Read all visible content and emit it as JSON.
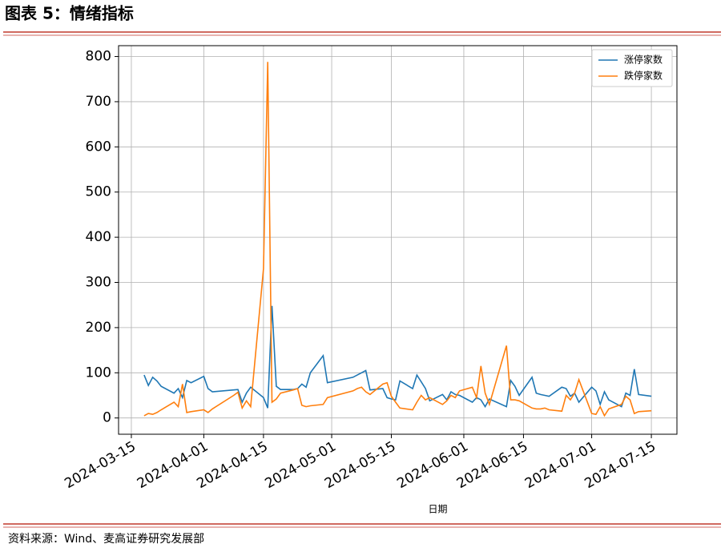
{
  "header": {
    "title": "图表 5：情绪指标"
  },
  "chart_data": {
    "type": "line",
    "xlabel": "日期",
    "x": [
      "2024-03-18",
      "2024-03-19",
      "2024-03-20",
      "2024-03-21",
      "2024-03-22",
      "2024-03-25",
      "2024-03-26",
      "2024-03-27",
      "2024-03-28",
      "2024-03-29",
      "2024-04-01",
      "2024-04-02",
      "2024-04-03",
      "2024-04-08",
      "2024-04-09",
      "2024-04-10",
      "2024-04-11",
      "2024-04-12",
      "2024-04-15",
      "2024-04-16",
      "2024-04-17",
      "2024-04-18",
      "2024-04-19",
      "2024-04-22",
      "2024-04-23",
      "2024-04-24",
      "2024-04-25",
      "2024-04-26",
      "2024-04-29",
      "2024-04-30",
      "2024-05-06",
      "2024-05-07",
      "2024-05-08",
      "2024-05-09",
      "2024-05-10",
      "2024-05-13",
      "2024-05-14",
      "2024-05-15",
      "2024-05-16",
      "2024-05-17",
      "2024-05-20",
      "2024-05-21",
      "2024-05-22",
      "2024-05-23",
      "2024-05-24",
      "2024-05-27",
      "2024-05-28",
      "2024-05-29",
      "2024-05-30",
      "2024-05-31",
      "2024-06-03",
      "2024-06-04",
      "2024-06-05",
      "2024-06-06",
      "2024-06-07",
      "2024-06-11",
      "2024-06-12",
      "2024-06-13",
      "2024-06-14",
      "2024-06-17",
      "2024-06-18",
      "2024-06-19",
      "2024-06-20",
      "2024-06-21",
      "2024-06-24",
      "2024-06-25",
      "2024-06-26",
      "2024-06-27",
      "2024-06-28",
      "2024-07-01",
      "2024-07-02",
      "2024-07-03",
      "2024-07-04",
      "2024-07-05",
      "2024-07-08",
      "2024-07-09",
      "2024-07-10",
      "2024-07-11",
      "2024-07-12",
      "2024-07-15"
    ],
    "series": [
      {
        "name": "涨停家数",
        "color": "#1f77b4",
        "values": [
          95,
          72,
          90,
          82,
          70,
          55,
          65,
          45,
          83,
          78,
          92,
          65,
          58,
          62,
          63,
          35,
          55,
          68,
          45,
          22,
          248,
          70,
          63,
          63,
          65,
          75,
          68,
          100,
          138,
          78,
          90,
          95,
          100,
          105,
          62,
          65,
          45,
          42,
          40,
          82,
          65,
          95,
          80,
          65,
          38,
          52,
          40,
          58,
          52,
          50,
          35,
          45,
          40,
          25,
          42,
          25,
          83,
          70,
          50,
          90,
          55,
          52,
          50,
          48,
          68,
          65,
          48,
          55,
          35,
          68,
          60,
          30,
          58,
          40,
          25,
          55,
          50,
          108,
          52,
          48
        ]
      },
      {
        "name": "跌停家数",
        "color": "#ff7f0e",
        "values": [
          5,
          10,
          8,
          12,
          18,
          35,
          25,
          75,
          12,
          14,
          18,
          12,
          20,
          50,
          57,
          22,
          38,
          25,
          330,
          788,
          35,
          42,
          55,
          62,
          65,
          28,
          25,
          27,
          30,
          45,
          60,
          65,
          68,
          58,
          52,
          75,
          78,
          48,
          35,
          22,
          18,
          35,
          50,
          40,
          45,
          30,
          38,
          50,
          45,
          60,
          68,
          45,
          115,
          55,
          30,
          160,
          40,
          40,
          38,
          22,
          20,
          20,
          22,
          18,
          15,
          50,
          40,
          55,
          85,
          10,
          8,
          25,
          5,
          20,
          30,
          48,
          40,
          10,
          14,
          16
        ]
      }
    ],
    "xlim": [
      "2024-03-12",
      "2024-07-21"
    ],
    "xticks": [
      "2024-03-15",
      "2024-04-01",
      "2024-04-15",
      "2024-05-01",
      "2024-05-15",
      "2024-06-01",
      "2024-06-15",
      "2024-07-01",
      "2024-07-15"
    ],
    "ylim": [
      -36,
      824
    ],
    "yticks": [
      0,
      100,
      200,
      300,
      400,
      500,
      600,
      700,
      800
    ],
    "grid": true,
    "legend": "upper right"
  },
  "footer": {
    "source": "资料来源：Wind、麦高证券研究发展部"
  }
}
